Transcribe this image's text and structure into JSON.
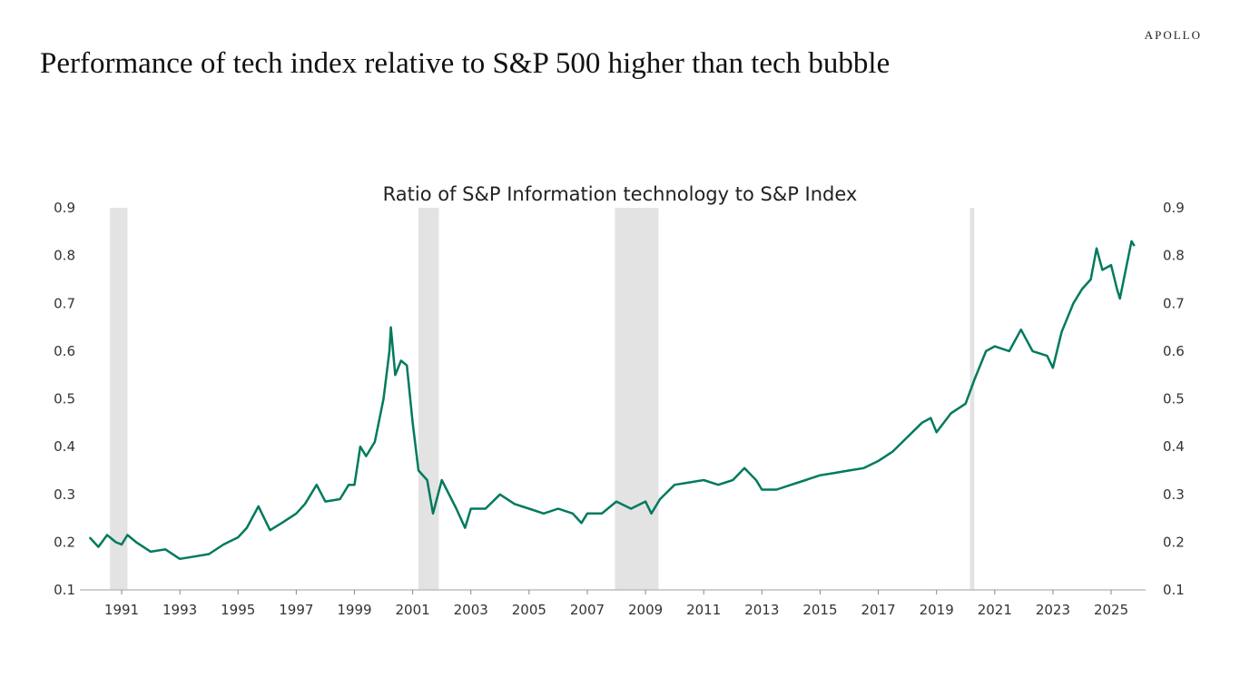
{
  "logo": "APOLLO",
  "title": "Performance of  tech index relative to S&P 500 higher than tech bubble",
  "chart_data": {
    "type": "line",
    "title": "Ratio of S&P Information technology to S&P Index",
    "xlabel": "",
    "ylabel": "",
    "ylim": [
      0.1,
      0.9
    ],
    "xlim": [
      1989.8,
      2025.9
    ],
    "yticks": [
      "0.1",
      "0.2",
      "0.3",
      "0.4",
      "0.5",
      "0.6",
      "0.7",
      "0.8",
      "0.9"
    ],
    "xticks": [
      "1991",
      "1993",
      "1995",
      "1997",
      "1999",
      "2001",
      "2003",
      "2005",
      "2007",
      "2009",
      "2011",
      "2013",
      "2015",
      "2017",
      "2019",
      "2021",
      "2023",
      "2025"
    ],
    "y_axis_both_sides": true,
    "grid": false,
    "line_color": "#007A5E",
    "shade_color": "#E3E3E3",
    "shaded_periods": [
      [
        1990.6,
        1991.2
      ],
      [
        2001.2,
        2001.9
      ],
      [
        2007.95,
        2009.45
      ],
      [
        2020.15,
        2020.3
      ]
    ],
    "series": [
      {
        "x": [
          1989.9,
          1990.2,
          1990.5,
          1990.8,
          1991.0,
          1991.2,
          1991.5,
          1992.0,
          1992.5,
          1993.0,
          1993.5,
          1994.0,
          1994.5,
          1995.0,
          1995.3,
          1995.7,
          1995.9,
          1996.1,
          1996.5,
          1997.0,
          1997.3,
          1997.7,
          1998.0,
          1998.5,
          1998.8,
          1999.0,
          1999.2,
          1999.4,
          1999.7,
          2000.0,
          2000.2,
          2000.25,
          2000.4,
          2000.6,
          2000.8,
          2001.0,
          2001.2,
          2001.5,
          2001.7,
          2002.0,
          2002.5,
          2002.8,
          2003.0,
          2003.5,
          2004.0,
          2004.5,
          2005.0,
          2005.5,
          2006.0,
          2006.5,
          2006.8,
          2007.0,
          2007.5,
          2008.0,
          2008.5,
          2009.0,
          2009.2,
          2009.5,
          2010.0,
          2010.5,
          2011.0,
          2011.5,
          2012.0,
          2012.4,
          2012.8,
          2013.0,
          2013.5,
          2014.0,
          2014.5,
          2015.0,
          2015.5,
          2016.0,
          2016.5,
          2017.0,
          2017.5,
          2018.0,
          2018.5,
          2018.8,
          2019.0,
          2019.5,
          2020.0,
          2020.3,
          2020.7,
          2021.0,
          2021.5,
          2021.9,
          2022.3,
          2022.8,
          2023.0,
          2023.3,
          2023.7,
          2024.0,
          2024.3,
          2024.5,
          2024.7,
          2025.0,
          2025.2,
          2025.3,
          2025.5,
          2025.7,
          2025.8
        ],
        "values": [
          0.21,
          0.19,
          0.215,
          0.2,
          0.195,
          0.215,
          0.2,
          0.18,
          0.185,
          0.165,
          0.17,
          0.175,
          0.195,
          0.21,
          0.23,
          0.275,
          0.25,
          0.225,
          0.24,
          0.26,
          0.28,
          0.32,
          0.285,
          0.29,
          0.32,
          0.32,
          0.4,
          0.38,
          0.41,
          0.5,
          0.6,
          0.65,
          0.55,
          0.58,
          0.57,
          0.45,
          0.35,
          0.33,
          0.26,
          0.33,
          0.27,
          0.23,
          0.27,
          0.27,
          0.3,
          0.28,
          0.27,
          0.26,
          0.27,
          0.26,
          0.24,
          0.26,
          0.26,
          0.285,
          0.27,
          0.285,
          0.26,
          0.29,
          0.32,
          0.325,
          0.33,
          0.32,
          0.33,
          0.355,
          0.33,
          0.31,
          0.31,
          0.32,
          0.33,
          0.34,
          0.345,
          0.35,
          0.355,
          0.37,
          0.39,
          0.42,
          0.45,
          0.46,
          0.43,
          0.47,
          0.49,
          0.54,
          0.6,
          0.61,
          0.6,
          0.645,
          0.6,
          0.59,
          0.565,
          0.64,
          0.7,
          0.73,
          0.75,
          0.815,
          0.77,
          0.78,
          0.73,
          0.71,
          0.77,
          0.83,
          0.82
        ]
      }
    ]
  }
}
